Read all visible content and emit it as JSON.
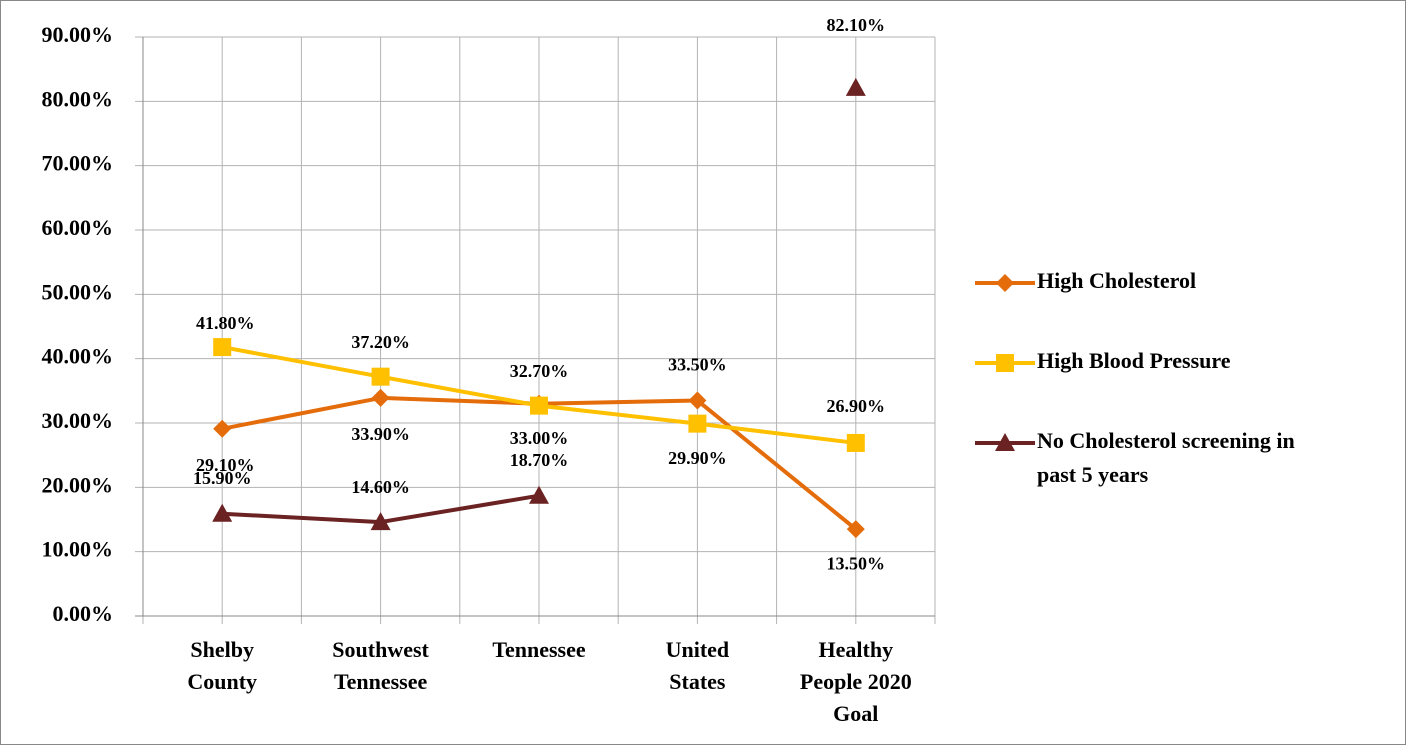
{
  "chart_data": {
    "type": "line",
    "categories": [
      "Shelby\nCounty",
      "Southwest\nTennessee",
      "Tennessee",
      "United\nStates",
      "Healthy\nPeople 2020\nGoal"
    ],
    "series": [
      {
        "name": "High Cholesterol",
        "color": "#e46c0a",
        "marker": "diamond",
        "values": [
          29.1,
          33.9,
          33.0,
          33.5,
          13.5
        ],
        "value_labels": [
          "29.10%",
          "33.90%",
          "33.00%",
          "33.50%",
          "13.50%"
        ]
      },
      {
        "name": "High Blood Pressure",
        "color": "#ffc000",
        "marker": "square",
        "values": [
          41.8,
          37.2,
          32.7,
          29.9,
          26.9
        ],
        "value_labels": [
          "41.80%",
          "37.20%",
          "32.70%",
          "29.90%",
          "26.90%"
        ]
      },
      {
        "name": "No Cholesterol screening in\npast 5 years",
        "color": "#6b2222",
        "marker": "triangle",
        "values": [
          15.9,
          14.6,
          18.7,
          null,
          82.1
        ],
        "value_labels": [
          "15.90%",
          "14.60%",
          "18.70%",
          null,
          "82.10%"
        ]
      }
    ],
    "ylim": [
      0,
      90
    ],
    "yticks": [
      {
        "value": 0,
        "label": "0.00%"
      },
      {
        "value": 10,
        "label": "10.00%"
      },
      {
        "value": 20,
        "label": "20.00%"
      },
      {
        "value": 30,
        "label": "30.00%"
      },
      {
        "value": 40,
        "label": "40.00%"
      },
      {
        "value": 50,
        "label": "50.00%"
      },
      {
        "value": 60,
        "label": "60.00%"
      },
      {
        "value": 70,
        "label": "70.00%"
      },
      {
        "value": 80,
        "label": "80.00%"
      },
      {
        "value": 90,
        "label": "90.00%"
      }
    ],
    "grid": true,
    "legend": "right"
  }
}
